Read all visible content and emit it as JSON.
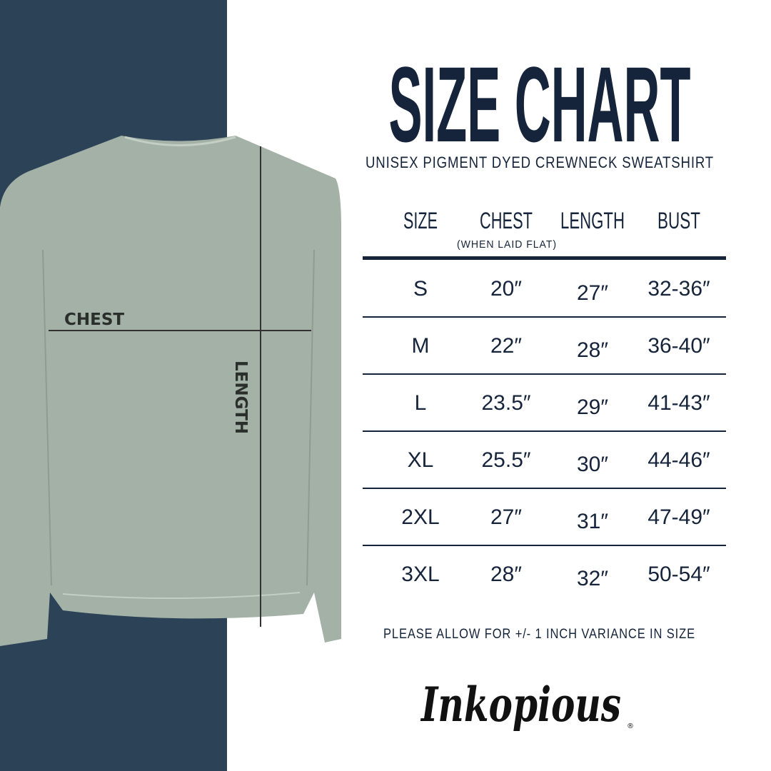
{
  "header": {
    "title": "SIZE CHART",
    "subtitle": "UNISEX PIGMENT DYED CREWNECK SWEATSHIRT"
  },
  "colors": {
    "panel": "#2c4257",
    "navy": "#15243a",
    "shirt": "#a3b1a6"
  },
  "diagram": {
    "chest_label": "CHEST",
    "length_label": "LENGTH"
  },
  "table": {
    "columns": [
      "SIZE",
      "CHEST",
      "LENGTH",
      "BUST"
    ],
    "chest_note": "(WHEN LAID FLAT)",
    "rows": [
      [
        "S",
        "20″",
        "27″",
        "32-36″"
      ],
      [
        "M",
        "22″",
        "28″",
        "36-40″"
      ],
      [
        "L",
        "23.5″",
        "29″",
        "41-43″"
      ],
      [
        "XL",
        "25.5″",
        "30″",
        "44-46″"
      ],
      [
        "2XL",
        "27″",
        "31″",
        "47-49″"
      ],
      [
        "3XL",
        "28″",
        "32″",
        "50-54″"
      ]
    ]
  },
  "note": "PLEASE ALLOW FOR +/- 1 INCH VARIANCE IN SIZE",
  "brand": {
    "logo": "Inkopious"
  }
}
